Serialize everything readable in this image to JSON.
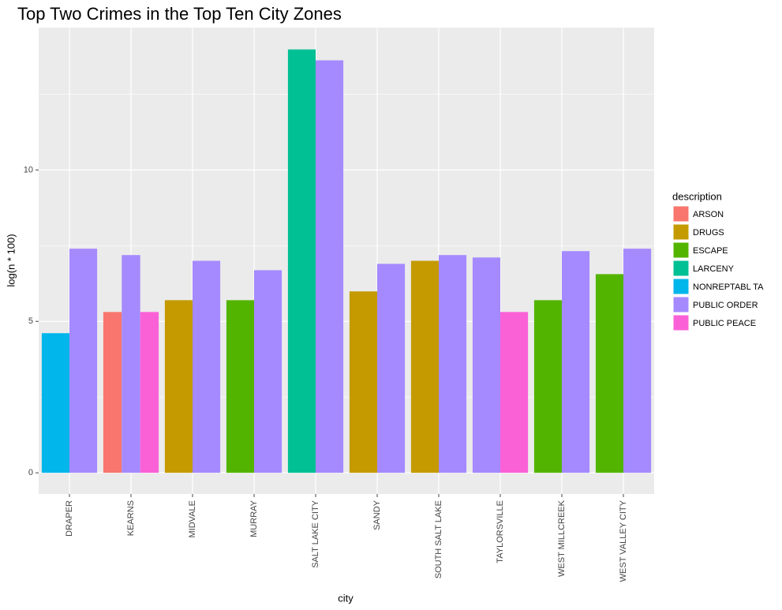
{
  "chart_data": {
    "type": "bar",
    "title": "Top Two Crimes in the Top Ten City Zones",
    "x_label": "city",
    "y_label": "log(n * 100)",
    "legend_title": "description",
    "categories": [
      "DRAPER",
      "KEARNS",
      "MIDVALE",
      "MURRAY",
      "SALT LAKE CITY",
      "SANDY",
      "SOUTH SALT LAKE",
      "TAYLORSVILLE",
      "WEST MILLCREEK",
      "WEST VALLEY CITY"
    ],
    "series": [
      {
        "name": "ARSON",
        "color": "#F8766D",
        "values": [
          null,
          5.31,
          null,
          null,
          null,
          null,
          null,
          null,
          null,
          null
        ]
      },
      {
        "name": "DRUGS",
        "color": "#C49A00",
        "values": [
          null,
          null,
          5.7,
          null,
          null,
          5.99,
          7.0,
          null,
          null,
          null
        ]
      },
      {
        "name": "ESCAPE",
        "color": "#53B400",
        "values": [
          null,
          null,
          null,
          5.7,
          null,
          null,
          null,
          null,
          5.7,
          6.56
        ]
      },
      {
        "name": "LARCENY",
        "color": "#00C094",
        "values": [
          null,
          null,
          null,
          null,
          13.98,
          null,
          null,
          null,
          null,
          null
        ]
      },
      {
        "name": "NONREPTABL TA",
        "color": "#00B6EB",
        "values": [
          4.61,
          null,
          null,
          null,
          null,
          null,
          null,
          null,
          null,
          null
        ]
      },
      {
        "name": "PUBLIC ORDER",
        "color": "#A58AFF",
        "values": [
          7.4,
          7.19,
          7.0,
          6.69,
          13.62,
          6.9,
          7.19,
          7.11,
          7.32,
          7.4
        ]
      },
      {
        "name": "PUBLIC PEACE",
        "color": "#FB61D7",
        "values": [
          null,
          5.31,
          null,
          null,
          null,
          null,
          null,
          5.31,
          null,
          null
        ]
      }
    ],
    "ylim": [
      -0.7,
      14.7
    ],
    "yticks": [
      0,
      5,
      10
    ],
    "grid": true
  }
}
